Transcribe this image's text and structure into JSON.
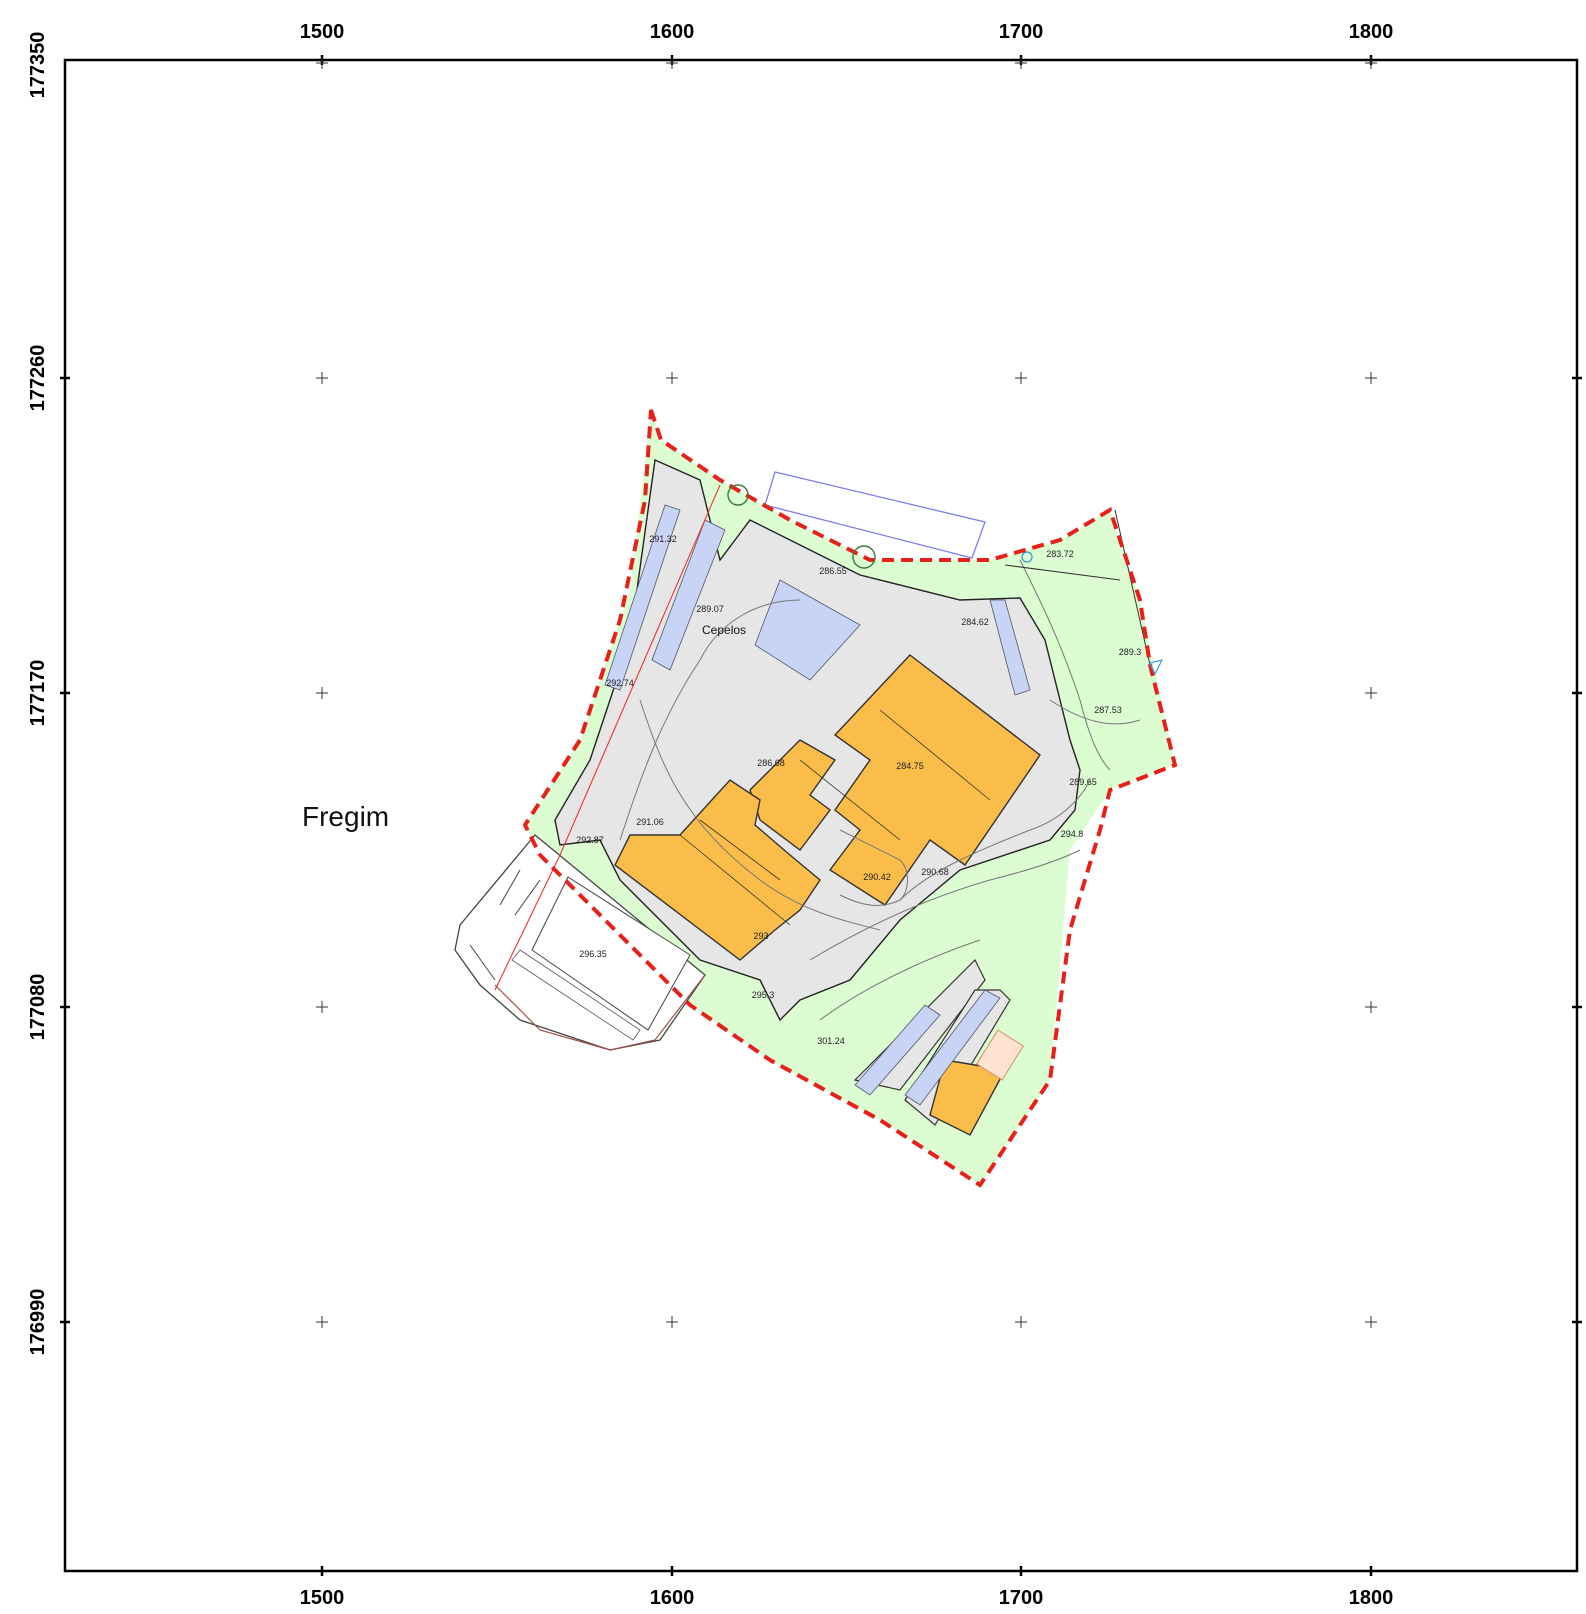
{
  "map": {
    "x_axis": {
      "ticks": [
        "1500",
        "1600",
        "1700",
        "1800"
      ]
    },
    "y_axis": {
      "ticks": [
        "177350",
        "177260",
        "177170",
        "177080",
        "176990"
      ]
    },
    "place_labels": [
      {
        "id": "fregim",
        "text": "Fregim"
      },
      {
        "id": "cepelos",
        "text": "Cepelos"
      }
    ],
    "elevations": [
      "291.32",
      "289.07",
      "286.55",
      "283.72",
      "284.62",
      "289.3",
      "287.53",
      "292.74",
      "286.68",
      "284.75",
      "289.65",
      "291.06",
      "292.87",
      "294.8",
      "290.42",
      "290.68",
      "293",
      "296.35",
      "295.3",
      "301.24"
    ],
    "colors": {
      "boundary": "#e8201c",
      "green_area": "#dcfcd2",
      "paved_area": "#e6e6e6",
      "buildings": "#fbbd4a",
      "parking": "#c7d4f5",
      "outline": "#222222"
    }
  }
}
